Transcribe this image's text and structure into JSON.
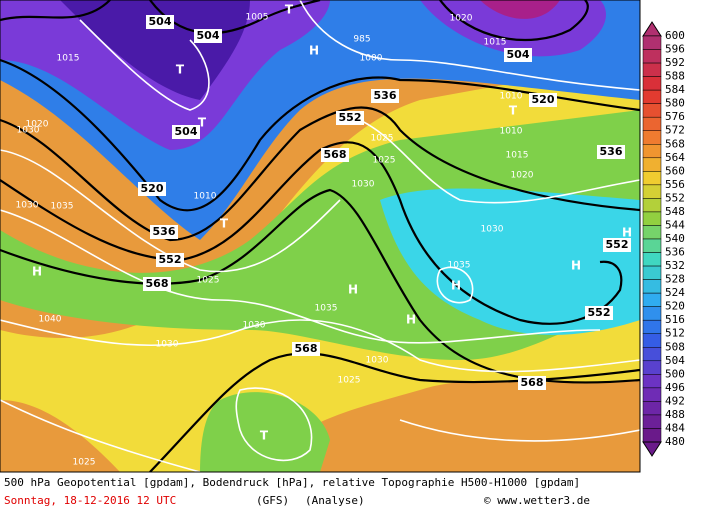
{
  "map": {
    "labels": [
      "504",
      "504",
      "504",
      "504",
      "520",
      "520",
      "536",
      "536",
      "536",
      "552",
      "552",
      "552",
      "552",
      "568",
      "568",
      "568",
      "568",
      "1005",
      "985",
      "1000",
      "1015",
      "1015",
      "1015",
      "1020",
      "1020",
      "1020",
      "1010",
      "1010",
      "1010",
      "1030",
      "1030",
      "1030",
      "1030",
      "1030",
      "1030",
      "1030",
      "1035",
      "1035",
      "1035",
      "1025",
      "1025",
      "1025",
      "1025",
      "1025",
      "1040",
      "T",
      "T",
      "T",
      "T",
      "T",
      "T",
      "H",
      "H",
      "H",
      "H",
      "H",
      "H",
      "H"
    ]
  },
  "legend": {
    "ticks": [
      600,
      596,
      592,
      588,
      584,
      580,
      576,
      572,
      568,
      564,
      560,
      556,
      552,
      548,
      544,
      540,
      536,
      532,
      528,
      524,
      520,
      516,
      512,
      508,
      504,
      500,
      496,
      492,
      488,
      484,
      480
    ]
  },
  "footer": {
    "description": "500 hPa Geopotential [gpdam], Bodendruck [hPa], relative Topographie H500-H1000 [gpdam]",
    "date": "Sonntag, 18-12-2016  12 UTC",
    "model": "(GFS)",
    "run": "(Analyse)",
    "credit": "© www.wetter3.de"
  }
}
